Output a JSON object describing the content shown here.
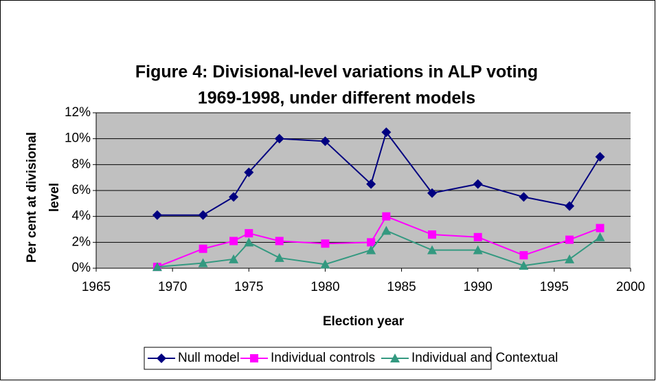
{
  "chart_data": {
    "type": "line",
    "title": [
      "Figure 4: Divisional-level variations in ALP voting",
      "1969-1998, under different models"
    ],
    "xlabel": "Election year",
    "ylabel": [
      "Per cent at divisional",
      "level"
    ],
    "x": [
      1969,
      1972,
      1974,
      1975,
      1977,
      1980,
      1983,
      1984,
      1987,
      1990,
      1993,
      1996,
      1998
    ],
    "series": [
      {
        "name": "Null model",
        "color": "#000080",
        "marker": "diamond",
        "values": [
          4.1,
          4.1,
          5.5,
          7.4,
          10.0,
          9.8,
          6.5,
          10.5,
          5.8,
          6.5,
          5.5,
          4.8,
          8.6
        ]
      },
      {
        "name": "Individual controls",
        "color": "#ff00ff",
        "marker": "square",
        "values": [
          0.1,
          1.5,
          2.1,
          2.7,
          2.1,
          1.9,
          2.0,
          4.0,
          2.6,
          2.4,
          1.0,
          2.2,
          3.1
        ]
      },
      {
        "name": "Individual and Contextual",
        "color": "#339980",
        "marker": "triangle",
        "values": [
          0.1,
          0.4,
          0.7,
          2.0,
          0.8,
          0.3,
          1.4,
          2.9,
          1.4,
          1.4,
          0.2,
          0.7,
          2.4
        ]
      }
    ],
    "xlim": [
      1965,
      2000
    ],
    "xticks": [
      1965,
      1970,
      1975,
      1980,
      1985,
      1990,
      1995,
      2000
    ],
    "ylim": [
      0,
      12
    ],
    "yticks": [
      {
        "value": 0,
        "label": "0%"
      },
      {
        "value": 2,
        "label": "2%"
      },
      {
        "value": 4,
        "label": "4%"
      },
      {
        "value": 6,
        "label": "6%"
      },
      {
        "value": 8,
        "label": "8%"
      },
      {
        "value": 10,
        "label": "10%"
      },
      {
        "value": 12,
        "label": "12%"
      }
    ],
    "grid": true,
    "legend": "bottom"
  }
}
